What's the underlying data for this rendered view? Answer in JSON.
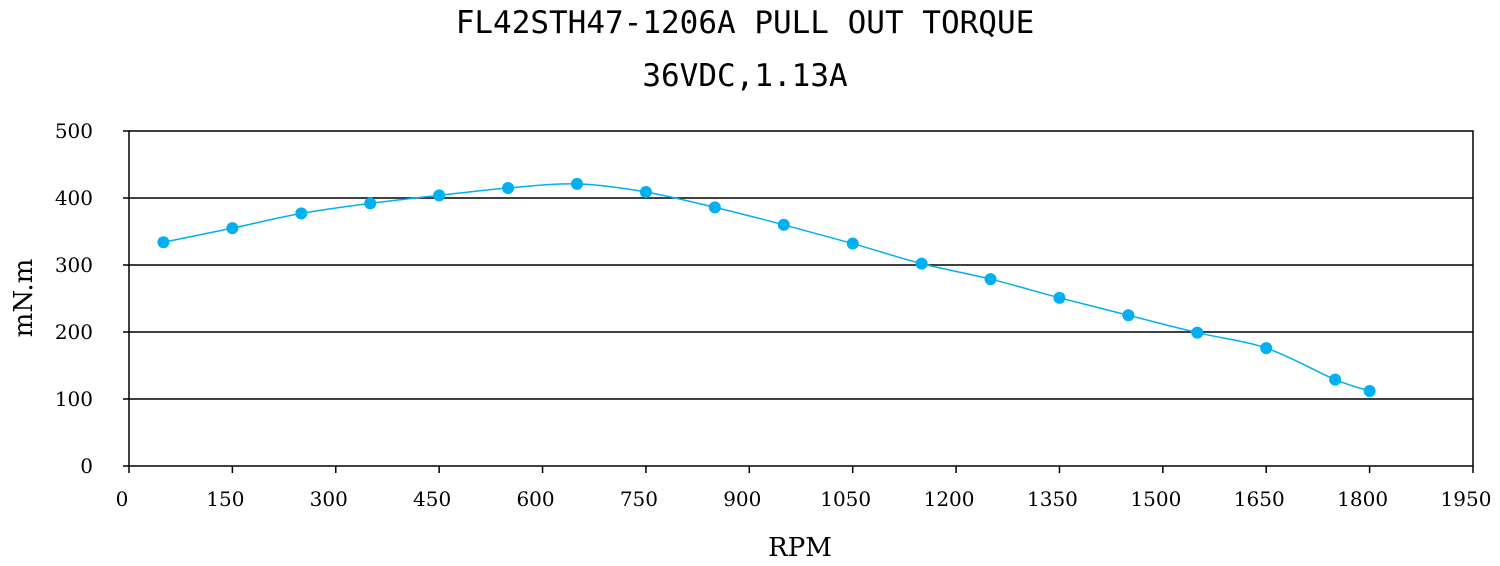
{
  "chart_data": {
    "type": "line",
    "title": "FL42STH47-1206A PULL OUT TORQUE",
    "subtitle": "36VDC,1.13A",
    "xlabel": "RPM",
    "ylabel": "mN.m",
    "xlim": [
      0,
      1950
    ],
    "ylim": [
      0,
      500
    ],
    "x_ticks": [
      0,
      150,
      300,
      450,
      600,
      750,
      900,
      1050,
      1200,
      1350,
      1500,
      1650,
      1800,
      1950
    ],
    "y_ticks": [
      0,
      100,
      200,
      300,
      400,
      500
    ],
    "grid": "horizontal",
    "series": [
      {
        "color": "#00b0f0",
        "x": [
          50,
          150,
          250,
          350,
          450,
          550,
          650,
          750,
          850,
          950,
          1050,
          1150,
          1250,
          1350,
          1450,
          1550,
          1650,
          1750,
          1800
        ],
        "y": [
          334,
          355,
          377,
          392,
          404,
          415,
          421,
          409,
          386,
          360,
          332,
          302,
          279,
          251,
          225,
          199,
          176,
          129,
          112
        ]
      }
    ]
  }
}
